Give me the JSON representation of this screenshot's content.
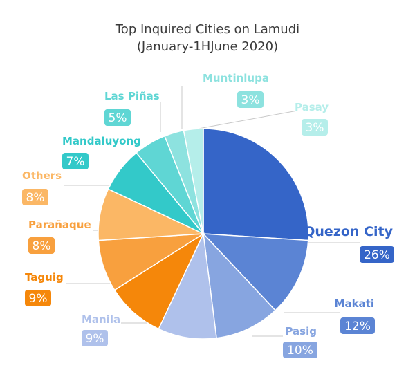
{
  "chart_data": {
    "type": "pie",
    "title": "Top Inquired Cities on Lamudi",
    "subtitle": "(January-1HJune 2020)",
    "start": "12 o'clock",
    "direction": "clockwise",
    "slices": [
      {
        "label": "Quezon City",
        "value": 26,
        "display": "26%",
        "color": "#3565c8"
      },
      {
        "label": "Makati",
        "value": 12,
        "display": "12%",
        "color": "#5b84d4"
      },
      {
        "label": "Pasig",
        "value": 10,
        "display": "10%",
        "color": "#87a5e0"
      },
      {
        "label": "Manila",
        "value": 9,
        "display": "9%",
        "color": "#afc1eb"
      },
      {
        "label": "Taguig",
        "value": 9,
        "display": "9%",
        "color": "#f5870a"
      },
      {
        "label": "Parañaque",
        "value": 8,
        "display": "8%",
        "color": "#f8a03e"
      },
      {
        "label": "Others",
        "value": 8,
        "display": "8%",
        "color": "#fbb765"
      },
      {
        "label": "Mandaluyong",
        "value": 7,
        "display": "7%",
        "color": "#33c9c9"
      },
      {
        "label": "Las Piñas",
        "value": 5,
        "display": "5%",
        "color": "#5fd6d4"
      },
      {
        "label": "Muntinlupa",
        "value": 3,
        "display": "3%",
        "color": "#8de2df"
      },
      {
        "label": "Pasay",
        "value": 3,
        "display": "3%",
        "color": "#b5eeea"
      }
    ]
  }
}
